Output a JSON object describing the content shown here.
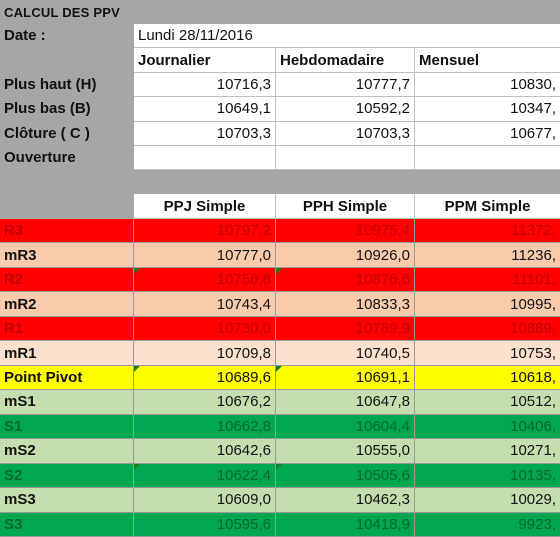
{
  "title": "CALCUL DES PPV",
  "date_label": "Date :",
  "date_value": "Lundi 28/11/2016",
  "input_headers": [
    "Journalier",
    "Hebdomadaire",
    "Mensuel"
  ],
  "input_rows": [
    {
      "label": "Plus haut (H)",
      "values": [
        "10716,3",
        "10777,7",
        "10830,"
      ]
    },
    {
      "label": "Plus bas (B)",
      "values": [
        "10649,1",
        "10592,2",
        "10347,"
      ]
    },
    {
      "label": "Clôture ( C )",
      "values": [
        "10703,3",
        "10703,3",
        "10677,"
      ]
    },
    {
      "label": "Ouverture",
      "values": [
        "",
        "",
        ""
      ]
    }
  ],
  "result_headers": [
    "PPJ Simple",
    "PPH Simple",
    "PPM Simple"
  ],
  "result_rows": [
    {
      "label": "R3",
      "values": [
        "10797,2",
        "10975,4",
        "11372,"
      ],
      "bg": "#ff0000",
      "text": "#c00000"
    },
    {
      "label": "mR3",
      "values": [
        "10777,0",
        "10926,0",
        "11236,"
      ],
      "bg": "#f8cbad",
      "text": "#111111"
    },
    {
      "label": "R2",
      "values": [
        "10756,8",
        "10876,6",
        "11101,"
      ],
      "bg": "#ff0000",
      "text": "#c00000"
    },
    {
      "label": "mR2",
      "values": [
        "10743,4",
        "10833,3",
        "10995,"
      ],
      "bg": "#f8cbad",
      "text": "#111111"
    },
    {
      "label": "R1",
      "values": [
        "10730,0",
        "10789,9",
        "10889,"
      ],
      "bg": "#ff0000",
      "text": "#c00000"
    },
    {
      "label": "mR1",
      "values": [
        "10709,8",
        "10740,5",
        "10753,"
      ],
      "bg": "#fbe0ce",
      "text": "#111111"
    },
    {
      "label": "Point Pivot",
      "values": [
        "10689,6",
        "10691,1",
        "10618,"
      ],
      "bg": "#ffff00",
      "text": "#111111"
    },
    {
      "label": "mS1",
      "values": [
        "10676,2",
        "10647,8",
        "10512,"
      ],
      "bg": "#c5deb0",
      "text": "#111111"
    },
    {
      "label": "S1",
      "values": [
        "10662,8",
        "10604,4",
        "10406,"
      ],
      "bg": "#00a650",
      "text": "#006b2e"
    },
    {
      "label": "mS2",
      "values": [
        "10642,6",
        "10555,0",
        "10271,"
      ],
      "bg": "#c5deb0",
      "text": "#111111"
    },
    {
      "label": "S2",
      "values": [
        "10622,4",
        "10505,6",
        "10135,"
      ],
      "bg": "#00a650",
      "text": "#006b2e"
    },
    {
      "label": "mS3",
      "values": [
        "10609,0",
        "10462,3",
        "10029,"
      ],
      "bg": "#c5deb0",
      "text": "#111111"
    },
    {
      "label": "S3",
      "values": [
        "10595,6",
        "10418,9",
        "9923,"
      ],
      "bg": "#00a650",
      "text": "#006b2e"
    }
  ],
  "colors": {
    "header_grey": "#a6a6a6",
    "triangle": "#1e7b1e"
  }
}
